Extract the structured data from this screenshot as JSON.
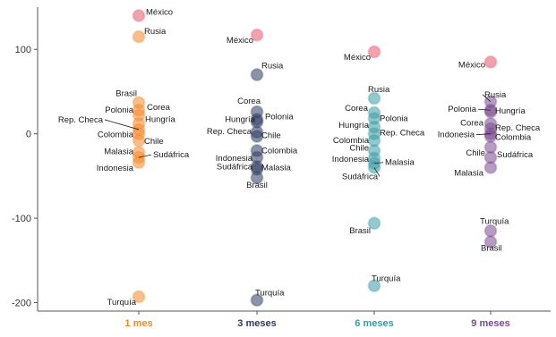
{
  "chart_data": {
    "type": "scatter",
    "title": "",
    "xlabel": "",
    "ylabel": "",
    "ylim": [
      -210,
      150
    ],
    "yticks": [
      100,
      0,
      -100,
      -200
    ],
    "grid": false,
    "categories": [
      "1 mes",
      "3 meses",
      "6 meses",
      "9 meses"
    ],
    "colors": {
      "1 mes": "#f5892a",
      "3 meses": "#2b3a5e",
      "6 meses": "#3a9aa5",
      "9 meses": "#7a4a8f",
      "México": "#e8566e",
      "axis": "#555555",
      "label": "#1a1a1a"
    },
    "points": [
      {
        "group": "1 mes",
        "label": "México",
        "value": 140,
        "highlight": true
      },
      {
        "group": "1 mes",
        "label": "Rusia",
        "value": 115
      },
      {
        "group": "1 mes",
        "label": "Brasil",
        "value": 37
      },
      {
        "group": "1 mes",
        "label": "Corea",
        "value": 28
      },
      {
        "group": "1 mes",
        "label": "Polonia",
        "value": 22
      },
      {
        "group": "1 mes",
        "label": "Hungría",
        "value": 12
      },
      {
        "group": "1 mes",
        "label": "Rep. Checa",
        "value": 5
      },
      {
        "group": "1 mes",
        "label": "Colombia",
        "value": 0
      },
      {
        "group": "1 mes",
        "label": "Chile",
        "value": -8
      },
      {
        "group": "1 mes",
        "label": "Malasia",
        "value": -22
      },
      {
        "group": "1 mes",
        "label": "Sudáfrica",
        "value": -28
      },
      {
        "group": "1 mes",
        "label": "Indonesia",
        "value": -34
      },
      {
        "group": "1 mes",
        "label": "Turquía",
        "value": -193
      },
      {
        "group": "3 meses",
        "label": "México",
        "value": 117,
        "highlight": true
      },
      {
        "group": "3 meses",
        "label": "Rusia",
        "value": 70
      },
      {
        "group": "3 meses",
        "label": "Corea",
        "value": 26
      },
      {
        "group": "3 meses",
        "label": "Hungría",
        "value": 14
      },
      {
        "group": "3 meses",
        "label": "Polonia",
        "value": 17
      },
      {
        "group": "3 meses",
        "label": "Rep. Checa",
        "value": 2
      },
      {
        "group": "3 meses",
        "label": "Chile",
        "value": -3
      },
      {
        "group": "3 meses",
        "label": "Colombia",
        "value": -20
      },
      {
        "group": "3 meses",
        "label": "Indonesia",
        "value": -28
      },
      {
        "group": "3 meses",
        "label": "Malasia",
        "value": -39
      },
      {
        "group": "3 meses",
        "label": "Sudáfrica",
        "value": -42
      },
      {
        "group": "3 meses",
        "label": "Brasil",
        "value": -52
      },
      {
        "group": "3 meses",
        "label": "Turquía",
        "value": -197
      },
      {
        "group": "6 meses",
        "label": "México",
        "value": 97,
        "highlight": true
      },
      {
        "group": "6 meses",
        "label": "Rusia",
        "value": 42
      },
      {
        "group": "6 meses",
        "label": "Corea",
        "value": 25
      },
      {
        "group": "6 meses",
        "label": "Polonia",
        "value": 18
      },
      {
        "group": "6 meses",
        "label": "Hungría",
        "value": 8
      },
      {
        "group": "6 meses",
        "label": "Rep. Checa",
        "value": 0
      },
      {
        "group": "6 meses",
        "label": "Colombia",
        "value": -8
      },
      {
        "group": "6 meses",
        "label": "Chile",
        "value": -20
      },
      {
        "group": "6 meses",
        "label": "Indonesia",
        "value": -29
      },
      {
        "group": "6 meses",
        "label": "Malasia",
        "value": -35
      },
      {
        "group": "6 meses",
        "label": "Sudáfrica",
        "value": -40
      },
      {
        "group": "6 meses",
        "label": "Brasil",
        "value": -106
      },
      {
        "group": "6 meses",
        "label": "Turquía",
        "value": -180
      },
      {
        "group": "9 meses",
        "label": "México",
        "value": 85,
        "highlight": true
      },
      {
        "group": "9 meses",
        "label": "Rusia",
        "value": 38
      },
      {
        "group": "9 meses",
        "label": "Polonia",
        "value": 28
      },
      {
        "group": "9 meses",
        "label": "Hungría",
        "value": 26
      },
      {
        "group": "9 meses",
        "label": "Corea",
        "value": 12
      },
      {
        "group": "9 meses",
        "label": "Rep. Checa",
        "value": 6
      },
      {
        "group": "9 meses",
        "label": "Indonesia",
        "value": 0
      },
      {
        "group": "9 meses",
        "label": "Colombia",
        "value": -3
      },
      {
        "group": "9 meses",
        "label": "Chile",
        "value": -16
      },
      {
        "group": "9 meses",
        "label": "Sudáfrica",
        "value": -28
      },
      {
        "group": "9 meses",
        "label": "Malasia",
        "value": -40
      },
      {
        "group": "9 meses",
        "label": "Turquía",
        "value": -115
      },
      {
        "group": "9 meses",
        "label": "Brasil",
        "value": -128
      }
    ]
  }
}
